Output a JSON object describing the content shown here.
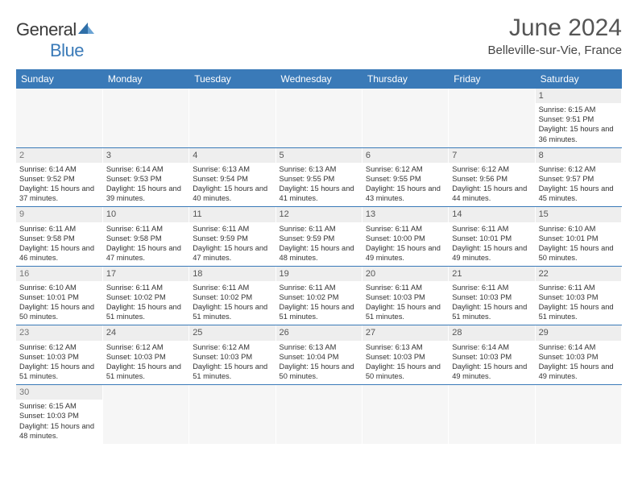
{
  "logo": {
    "text_a": "General",
    "text_b": "Blue"
  },
  "title": "June 2024",
  "location": "Belleville-sur-Vie, France",
  "theme": {
    "header_bg": "#3a7ab8",
    "header_fg": "#ffffff",
    "daynum_bg": "#eeeeee",
    "border": "#3a7ab8",
    "text": "#333333"
  },
  "weekdays": [
    "Sunday",
    "Monday",
    "Tuesday",
    "Wednesday",
    "Thursday",
    "Friday",
    "Saturday"
  ],
  "weeks": [
    [
      null,
      null,
      null,
      null,
      null,
      null,
      {
        "n": "1",
        "sr": "6:15 AM",
        "ss": "9:51 PM",
        "dl": "15 hours and 36 minutes."
      }
    ],
    [
      {
        "n": "2",
        "sr": "6:14 AM",
        "ss": "9:52 PM",
        "dl": "15 hours and 37 minutes."
      },
      {
        "n": "3",
        "sr": "6:14 AM",
        "ss": "9:53 PM",
        "dl": "15 hours and 39 minutes."
      },
      {
        "n": "4",
        "sr": "6:13 AM",
        "ss": "9:54 PM",
        "dl": "15 hours and 40 minutes."
      },
      {
        "n": "5",
        "sr": "6:13 AM",
        "ss": "9:55 PM",
        "dl": "15 hours and 41 minutes."
      },
      {
        "n": "6",
        "sr": "6:12 AM",
        "ss": "9:55 PM",
        "dl": "15 hours and 43 minutes."
      },
      {
        "n": "7",
        "sr": "6:12 AM",
        "ss": "9:56 PM",
        "dl": "15 hours and 44 minutes."
      },
      {
        "n": "8",
        "sr": "6:12 AM",
        "ss": "9:57 PM",
        "dl": "15 hours and 45 minutes."
      }
    ],
    [
      {
        "n": "9",
        "sr": "6:11 AM",
        "ss": "9:58 PM",
        "dl": "15 hours and 46 minutes."
      },
      {
        "n": "10",
        "sr": "6:11 AM",
        "ss": "9:58 PM",
        "dl": "15 hours and 47 minutes."
      },
      {
        "n": "11",
        "sr": "6:11 AM",
        "ss": "9:59 PM",
        "dl": "15 hours and 47 minutes."
      },
      {
        "n": "12",
        "sr": "6:11 AM",
        "ss": "9:59 PM",
        "dl": "15 hours and 48 minutes."
      },
      {
        "n": "13",
        "sr": "6:11 AM",
        "ss": "10:00 PM",
        "dl": "15 hours and 49 minutes."
      },
      {
        "n": "14",
        "sr": "6:11 AM",
        "ss": "10:01 PM",
        "dl": "15 hours and 49 minutes."
      },
      {
        "n": "15",
        "sr": "6:10 AM",
        "ss": "10:01 PM",
        "dl": "15 hours and 50 minutes."
      }
    ],
    [
      {
        "n": "16",
        "sr": "6:10 AM",
        "ss": "10:01 PM",
        "dl": "15 hours and 50 minutes."
      },
      {
        "n": "17",
        "sr": "6:11 AM",
        "ss": "10:02 PM",
        "dl": "15 hours and 51 minutes."
      },
      {
        "n": "18",
        "sr": "6:11 AM",
        "ss": "10:02 PM",
        "dl": "15 hours and 51 minutes."
      },
      {
        "n": "19",
        "sr": "6:11 AM",
        "ss": "10:02 PM",
        "dl": "15 hours and 51 minutes."
      },
      {
        "n": "20",
        "sr": "6:11 AM",
        "ss": "10:03 PM",
        "dl": "15 hours and 51 minutes."
      },
      {
        "n": "21",
        "sr": "6:11 AM",
        "ss": "10:03 PM",
        "dl": "15 hours and 51 minutes."
      },
      {
        "n": "22",
        "sr": "6:11 AM",
        "ss": "10:03 PM",
        "dl": "15 hours and 51 minutes."
      }
    ],
    [
      {
        "n": "23",
        "sr": "6:12 AM",
        "ss": "10:03 PM",
        "dl": "15 hours and 51 minutes."
      },
      {
        "n": "24",
        "sr": "6:12 AM",
        "ss": "10:03 PM",
        "dl": "15 hours and 51 minutes."
      },
      {
        "n": "25",
        "sr": "6:12 AM",
        "ss": "10:03 PM",
        "dl": "15 hours and 51 minutes."
      },
      {
        "n": "26",
        "sr": "6:13 AM",
        "ss": "10:04 PM",
        "dl": "15 hours and 50 minutes."
      },
      {
        "n": "27",
        "sr": "6:13 AM",
        "ss": "10:03 PM",
        "dl": "15 hours and 50 minutes."
      },
      {
        "n": "28",
        "sr": "6:14 AM",
        "ss": "10:03 PM",
        "dl": "15 hours and 49 minutes."
      },
      {
        "n": "29",
        "sr": "6:14 AM",
        "ss": "10:03 PM",
        "dl": "15 hours and 49 minutes."
      }
    ],
    [
      {
        "n": "30",
        "sr": "6:15 AM",
        "ss": "10:03 PM",
        "dl": "15 hours and 48 minutes."
      },
      null,
      null,
      null,
      null,
      null,
      null
    ]
  ],
  "labels": {
    "sunrise": "Sunrise:",
    "sunset": "Sunset:",
    "daylight": "Daylight:"
  }
}
